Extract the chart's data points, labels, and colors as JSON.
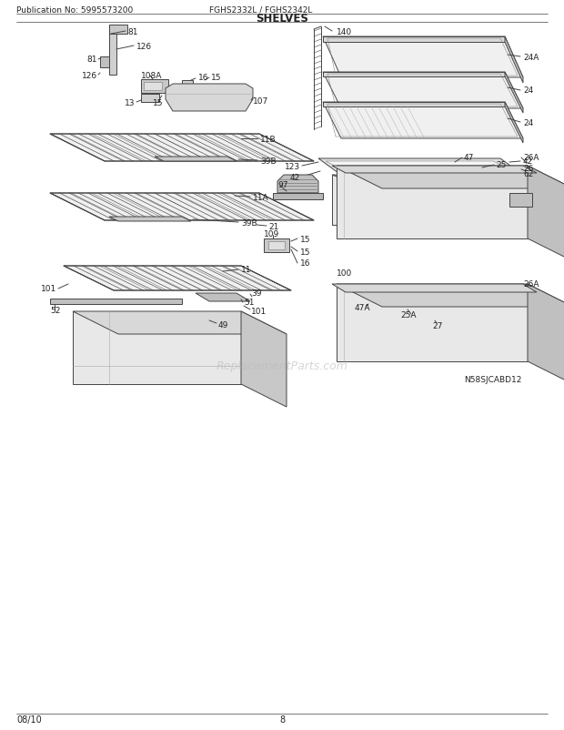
{
  "title": "SHELVES",
  "header_left": "Publication No: 5995573200",
  "header_center": "FGHS2332L / FGHS2342L",
  "footer_left": "08/10",
  "footer_center": "8",
  "watermark": "ReplacementParts.com",
  "bg_color": "#ffffff",
  "text_color": "#222222",
  "line_color": "#444444",
  "lw": 0.7
}
